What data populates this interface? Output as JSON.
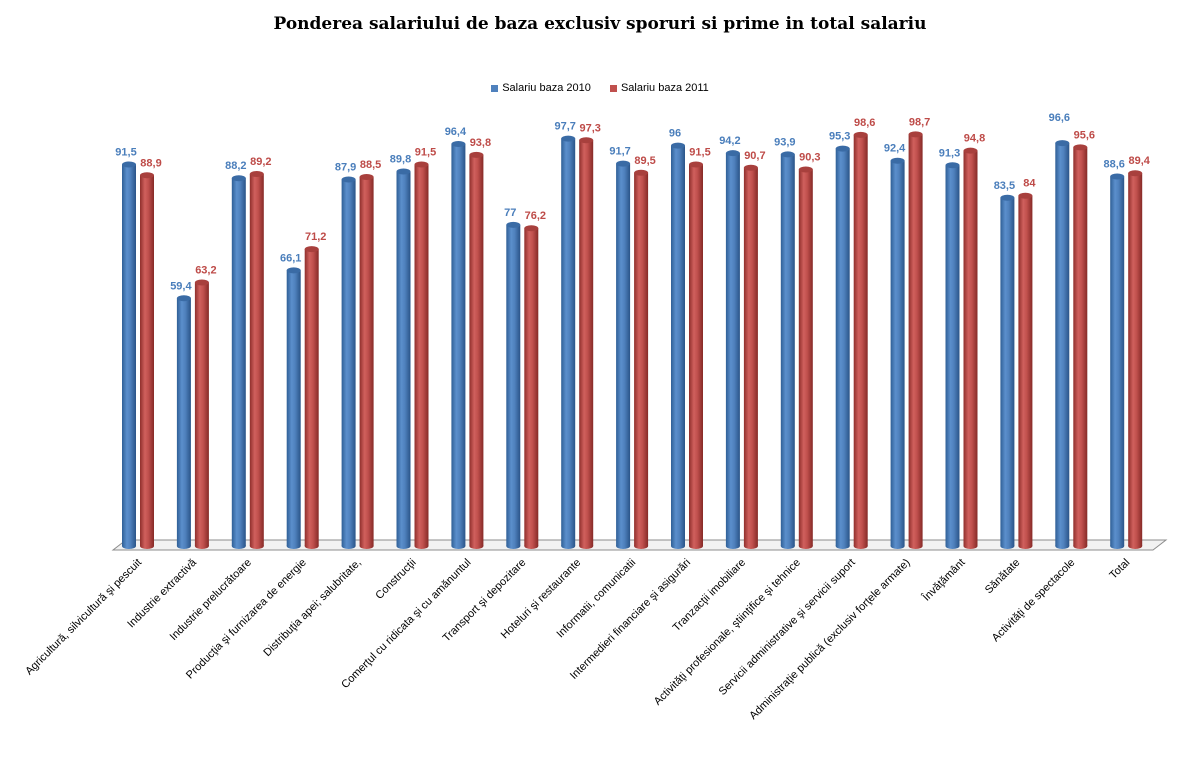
{
  "chart_data": {
    "type": "bar",
    "title": "Ponderea salariului de baza exclusiv sporuri si prime  in total salariu",
    "xlabel": "",
    "ylabel": "",
    "ylim": [
      0,
      100
    ],
    "grid": false,
    "legend_position": "top",
    "categories": [
      "Agricultură, silvicultură şi pescuit",
      "Industrie extractivă",
      "Industrie prelucrătoare",
      "Producţia şi furnizarea de energie",
      "Distribuţia apei; salubritate,",
      "Construcţii",
      "Comerţul cu ridicata şi cu amănuntul",
      "Transport şi depozitare",
      "Hoteluri şi restaurante",
      "Informatii, comunicatii",
      "Intermedieri financiare şi asigurări",
      "Tranzacţii imobiliare",
      "Activităţi profesionale, ştiinţifice şi tehnice",
      "Servicii administrative şi servicii suport",
      "Administraţie publică (exclusiv forţele armate)",
      "Învăţământ",
      "Sănătate",
      "Activităţi de spectacole",
      "Total"
    ],
    "series": [
      {
        "name": "Salariu baza 2010",
        "color": "#4F81BD",
        "label_color": "#4A7EBB",
        "values": [
          91.5,
          59.4,
          88.2,
          66.1,
          87.9,
          89.8,
          96.4,
          77,
          97.7,
          91.7,
          96,
          94.2,
          93.9,
          95.3,
          92.4,
          91.3,
          83.5,
          96.6,
          88.6
        ],
        "labels": [
          "91,5",
          "59,4",
          "88,2",
          "66,1",
          "87,9",
          "89,8",
          "96,4",
          "77",
          "97,7",
          "91,7",
          "96",
          "94,2",
          "93,9",
          "95,3",
          "92,4",
          "91,3",
          "83,5",
          "96,6",
          "88,6"
        ]
      },
      {
        "name": "Salariu baza 2011",
        "color": "#C0504D",
        "label_color": "#BE4B48",
        "values": [
          88.9,
          63.2,
          89.2,
          71.2,
          88.5,
          91.5,
          93.8,
          76.2,
          97.3,
          89.5,
          91.5,
          90.7,
          90.3,
          98.6,
          98.7,
          94.8,
          84,
          95.6,
          89.4
        ],
        "labels": [
          "88,9",
          "63,2",
          "89,2",
          "71,2",
          "88,5",
          "91,5",
          "93,8",
          "76,2",
          "97,3",
          "89,5",
          "91,5",
          "90,7",
          "90,3",
          "98,6",
          "98,7",
          "94,8",
          "84",
          "95,6",
          "89,4"
        ]
      }
    ]
  }
}
